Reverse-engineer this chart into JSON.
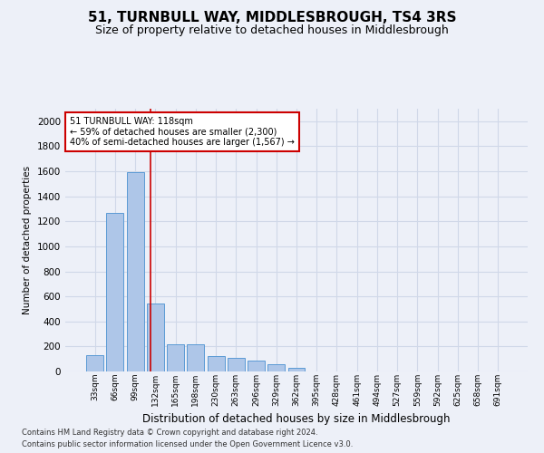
{
  "title": "51, TURNBULL WAY, MIDDLESBROUGH, TS4 3RS",
  "subtitle": "Size of property relative to detached houses in Middlesbrough",
  "xlabel": "Distribution of detached houses by size in Middlesbrough",
  "ylabel": "Number of detached properties",
  "footer_line1": "Contains HM Land Registry data © Crown copyright and database right 2024.",
  "footer_line2": "Contains public sector information licensed under the Open Government Licence v3.0.",
  "bar_labels": [
    "33sqm",
    "66sqm",
    "99sqm",
    "132sqm",
    "165sqm",
    "198sqm",
    "230sqm",
    "263sqm",
    "296sqm",
    "329sqm",
    "362sqm",
    "395sqm",
    "428sqm",
    "461sqm",
    "494sqm",
    "527sqm",
    "559sqm",
    "592sqm",
    "625sqm",
    "658sqm",
    "691sqm"
  ],
  "bar_values": [
    130,
    1270,
    1590,
    540,
    220,
    220,
    120,
    110,
    85,
    60,
    30,
    0,
    0,
    0,
    0,
    0,
    0,
    0,
    0,
    0,
    0
  ],
  "bar_color": "#aec6e8",
  "bar_edge_color": "#5b9bd5",
  "property_line_x": 2.75,
  "property_line_color": "#cc0000",
  "annotation_text": "51 TURNBULL WAY: 118sqm\n← 59% of detached houses are smaller (2,300)\n40% of semi-detached houses are larger (1,567) →",
  "annotation_box_color": "#ffffff",
  "annotation_box_edge": "#cc0000",
  "ylim": [
    0,
    2100
  ],
  "yticks": [
    0,
    200,
    400,
    600,
    800,
    1000,
    1200,
    1400,
    1600,
    1800,
    2000
  ],
  "grid_color": "#d0d8e8",
  "background_color": "#edf0f8",
  "plot_bg_color": "#edf0f8",
  "title_fontsize": 11,
  "subtitle_fontsize": 9
}
